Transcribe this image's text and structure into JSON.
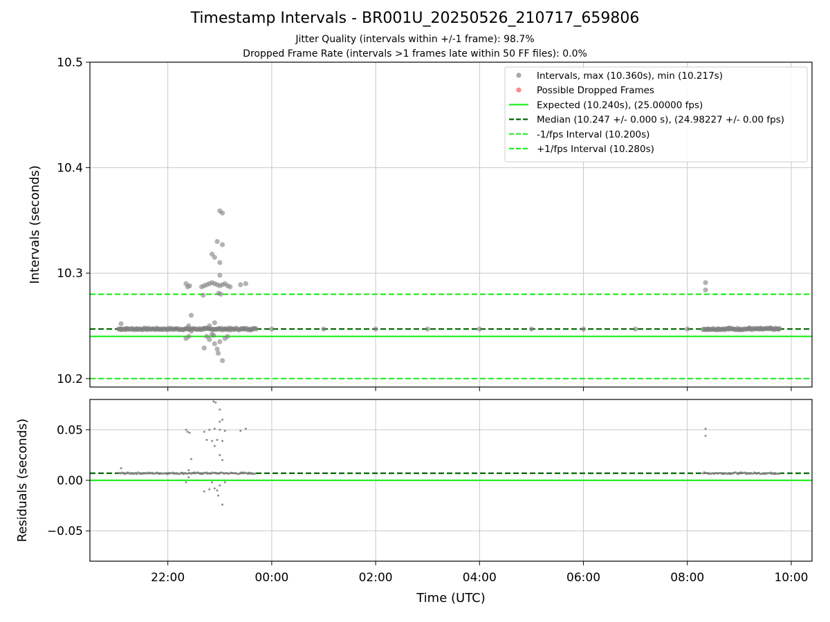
{
  "title": "Timestamp Intervals - BR001U_20250526_210717_659806",
  "subtitle_jitter": "Jitter Quality (intervals within +/-1 frame): 98.7%",
  "subtitle_dropped": "Dropped Frame Rate (intervals >1 frames late within 50 FF files): 0.0%",
  "colors": {
    "intervals": "#808080",
    "dropped": "#ff5555",
    "expected": "#22ee22",
    "median": "#006400",
    "fps_bounds": "#22ee22",
    "grid": "#c8c8c8"
  },
  "chart_data": [
    {
      "type": "scatter",
      "panel": "intervals",
      "xlabel": "",
      "ylabel": "Intervals (seconds)",
      "xlim_hours": [
        20.5,
        34.4
      ],
      "ylim": [
        10.192,
        10.5
      ],
      "yticks": [
        10.2,
        10.3,
        10.4,
        10.5
      ],
      "ytick_labels": [
        "10.2",
        "10.3",
        "10.4",
        "10.5"
      ],
      "grid": true,
      "legend_placement": "top-right",
      "legend": [
        {
          "label": "Intervals, max (10.360s), min (10.217s)",
          "kind": "dot",
          "color": "#808080"
        },
        {
          "label": "Possible Dropped Frames",
          "kind": "dot",
          "color": "#ff5555"
        },
        {
          "label": "Expected (10.240s), (25.00000 fps)",
          "kind": "solid",
          "color": "#22ee22"
        },
        {
          "label": "Median (10.247 +/- 0.000 s), (24.98227 +/- 0.00 fps)",
          "kind": "dashed",
          "color": "#006400"
        },
        {
          "label": "-1/fps Interval (10.200s)",
          "kind": "dashed",
          "color": "#22ee22"
        },
        {
          "label": "+1/fps Interval (10.280s)",
          "kind": "dashed",
          "color": "#22ee22"
        }
      ],
      "hlines": [
        {
          "name": "expected",
          "y": 10.24,
          "style": "solid",
          "color": "#22ee22"
        },
        {
          "name": "median",
          "y": 10.247,
          "style": "dashed",
          "color": "#006400"
        },
        {
          "name": "minus-fps",
          "y": 10.2,
          "style": "dashed",
          "color": "#22ee22"
        },
        {
          "name": "plus-fps",
          "y": 10.28,
          "style": "dashed",
          "color": "#22ee22"
        }
      ],
      "points": [
        [
          21.1,
          10.252
        ],
        [
          21.1,
          10.247
        ],
        [
          21.2,
          10.247
        ],
        [
          21.4,
          10.247
        ],
        [
          21.6,
          10.247
        ],
        [
          21.8,
          10.247
        ],
        [
          22.35,
          10.29
        ],
        [
          22.38,
          10.287
        ],
        [
          22.42,
          10.288
        ],
        [
          22.37,
          10.247
        ],
        [
          22.4,
          10.25
        ],
        [
          22.45,
          10.26
        ],
        [
          22.35,
          10.238
        ],
        [
          22.4,
          10.24
        ],
        [
          22.45,
          10.245
        ],
        [
          22.65,
          10.287
        ],
        [
          22.7,
          10.288
        ],
        [
          22.75,
          10.289
        ],
        [
          22.8,
          10.29
        ],
        [
          22.85,
          10.291
        ],
        [
          22.9,
          10.29
        ],
        [
          22.95,
          10.289
        ],
        [
          23.0,
          10.288
        ],
        [
          23.05,
          10.289
        ],
        [
          23.1,
          10.29
        ],
        [
          23.15,
          10.288
        ],
        [
          23.2,
          10.287
        ],
        [
          22.68,
          10.279
        ],
        [
          22.98,
          10.281
        ],
        [
          23.02,
          10.28
        ],
        [
          23.0,
          10.298
        ],
        [
          22.85,
          10.318
        ],
        [
          23.0,
          10.31
        ],
        [
          22.95,
          10.33
        ],
        [
          23.05,
          10.327
        ],
        [
          22.9,
          10.315
        ],
        [
          23.0,
          10.359
        ],
        [
          23.05,
          10.357
        ],
        [
          22.7,
          10.247
        ],
        [
          22.8,
          10.25
        ],
        [
          22.9,
          10.253
        ],
        [
          23.0,
          10.247
        ],
        [
          23.1,
          10.247
        ],
        [
          23.2,
          10.246
        ],
        [
          22.7,
          10.229
        ],
        [
          22.75,
          10.24
        ],
        [
          22.8,
          10.237
        ],
        [
          22.85,
          10.242
        ],
        [
          22.9,
          10.233
        ],
        [
          22.95,
          10.228
        ],
        [
          22.97,
          10.224
        ],
        [
          23.0,
          10.235
        ],
        [
          23.05,
          10.217
        ],
        [
          23.1,
          10.238
        ],
        [
          23.15,
          10.24
        ],
        [
          22.88,
          10.241
        ],
        [
          23.4,
          10.289
        ],
        [
          23.5,
          10.29
        ],
        [
          23.45,
          10.247
        ],
        [
          23.6,
          10.247
        ],
        [
          23.7,
          10.247
        ],
        [
          24.0,
          10.247
        ],
        [
          25.0,
          10.247
        ],
        [
          26.0,
          10.247
        ],
        [
          27.0,
          10.247
        ],
        [
          28.0,
          10.247
        ],
        [
          29.0,
          10.247
        ],
        [
          30.0,
          10.247
        ],
        [
          31.0,
          10.247
        ],
        [
          32.0,
          10.247
        ],
        [
          32.35,
          10.291
        ],
        [
          32.35,
          10.284
        ],
        [
          32.4,
          10.247
        ],
        [
          32.6,
          10.247
        ],
        [
          32.8,
          10.248
        ],
        [
          33.0,
          10.247
        ],
        [
          33.2,
          10.248
        ],
        [
          33.4,
          10.247
        ],
        [
          33.6,
          10.248
        ],
        [
          33.75,
          10.247
        ]
      ],
      "dense_bands": [
        {
          "x_from": 21.05,
          "x_to": 23.7,
          "y": 10.247
        },
        {
          "x_from": 32.3,
          "x_to": 33.8,
          "y": 10.247
        }
      ]
    },
    {
      "type": "scatter",
      "panel": "residuals",
      "xlabel": "Time (UTC)",
      "ylabel": "Residuals (seconds)",
      "xlim_hours": [
        20.5,
        34.4
      ],
      "ylim": [
        -0.08,
        0.08
      ],
      "yticks": [
        -0.05,
        0.0,
        0.05
      ],
      "ytick_labels": [
        "−0.05",
        "0.00",
        "0.05"
      ],
      "xticks_hours": [
        22,
        24,
        26,
        28,
        30,
        32,
        34
      ],
      "xtick_labels": [
        "22:00",
        "00:00",
        "02:00",
        "04:00",
        "06:00",
        "08:00",
        "10:00"
      ],
      "grid": true,
      "hlines": [
        {
          "name": "zero",
          "y": 0.0,
          "style": "solid",
          "color": "#22ee22"
        },
        {
          "name": "median-offset",
          "y": 0.007,
          "style": "dashed",
          "color": "#006400"
        }
      ],
      "points": [
        [
          21.1,
          0.012
        ],
        [
          21.1,
          0.007
        ],
        [
          21.3,
          0.007
        ],
        [
          22.35,
          0.05
        ],
        [
          22.38,
          0.048
        ],
        [
          22.42,
          0.047
        ],
        [
          22.45,
          0.021
        ],
        [
          22.4,
          0.01
        ],
        [
          22.35,
          -0.002
        ],
        [
          22.4,
          0.003
        ],
        [
          22.7,
          0.048
        ],
        [
          22.8,
          0.05
        ],
        [
          22.9,
          0.051
        ],
        [
          23.0,
          0.05
        ],
        [
          23.1,
          0.049
        ],
        [
          22.75,
          0.04
        ],
        [
          22.85,
          0.039
        ],
        [
          22.95,
          0.04
        ],
        [
          23.05,
          0.039
        ],
        [
          22.88,
          0.078
        ],
        [
          22.92,
          0.077
        ],
        [
          23.0,
          0.07
        ],
        [
          23.0,
          0.058
        ],
        [
          23.05,
          0.06
        ],
        [
          22.9,
          0.034
        ],
        [
          23.0,
          0.025
        ],
        [
          23.05,
          0.02
        ],
        [
          22.7,
          -0.011
        ],
        [
          22.8,
          -0.009
        ],
        [
          22.85,
          -0.002
        ],
        [
          22.9,
          -0.008
        ],
        [
          22.95,
          -0.01
        ],
        [
          22.97,
          -0.015
        ],
        [
          23.0,
          -0.005
        ],
        [
          23.05,
          -0.024
        ],
        [
          23.1,
          -0.002
        ],
        [
          23.4,
          0.049
        ],
        [
          23.5,
          0.051
        ],
        [
          32.35,
          0.051
        ],
        [
          32.35,
          0.044
        ]
      ],
      "dense_bands": [
        {
          "x_from": 21.05,
          "x_to": 23.7,
          "y": 0.007
        },
        {
          "x_from": 32.3,
          "x_to": 33.8,
          "y": 0.007
        }
      ]
    }
  ]
}
